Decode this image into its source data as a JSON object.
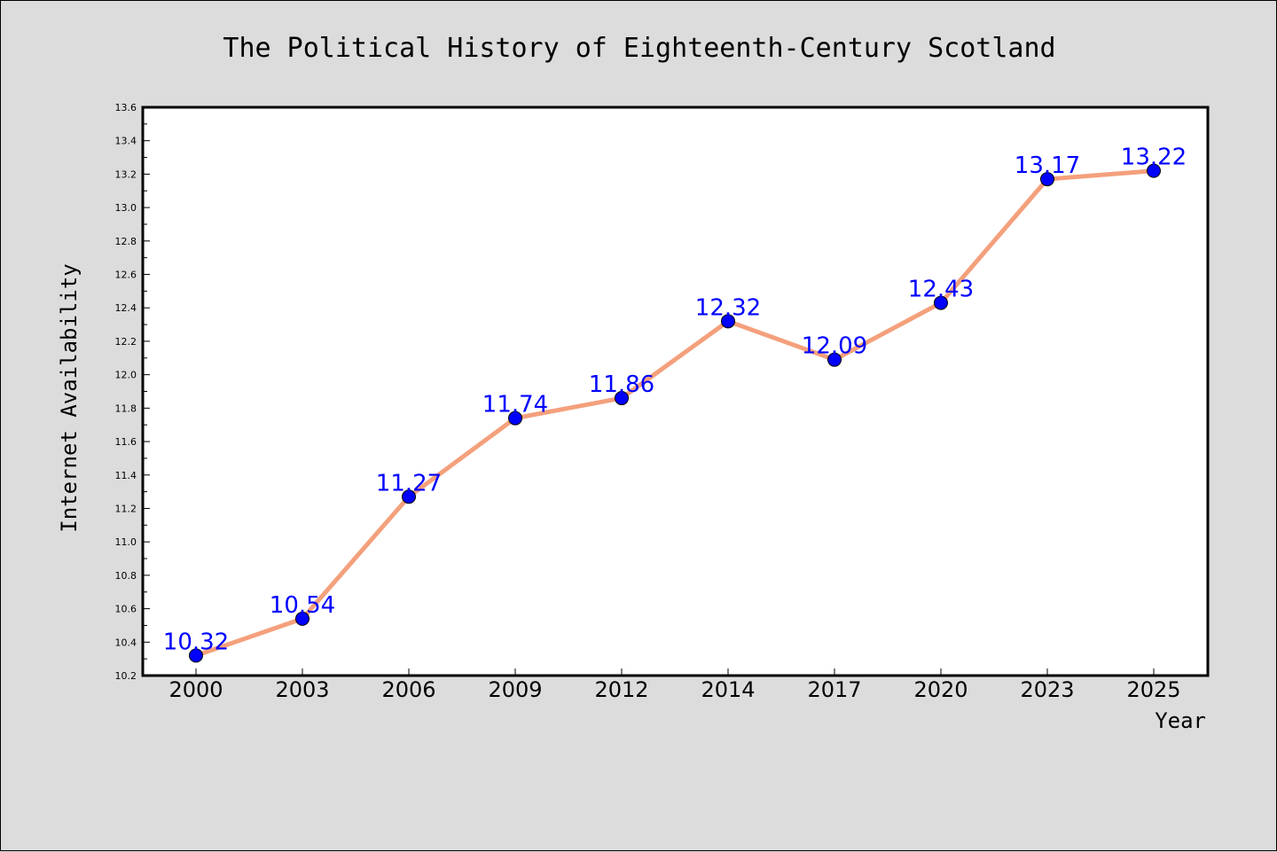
{
  "chart_data": {
    "type": "line",
    "title": "The Political History of Eighteenth-Century Scotland",
    "xlabel": "Year",
    "ylabel": "Internet Availability",
    "categories": [
      "2000",
      "2003",
      "2006",
      "2009",
      "2012",
      "2014",
      "2017",
      "2020",
      "2023",
      "2025"
    ],
    "series": [
      {
        "values": [
          10.32,
          10.54,
          11.27,
          11.74,
          11.86,
          12.32,
          12.09,
          12.43,
          13.17,
          13.22
        ],
        "labels": [
          "10.32",
          "10.54",
          "11.27",
          "11.74",
          "11.86",
          "12.32",
          "12.09",
          "12.43",
          "13.17",
          "13.22"
        ]
      }
    ],
    "ylim": [
      10.2,
      13.6
    ],
    "yticks": [
      "10.2",
      "10.4",
      "10.6",
      "10.8",
      "11.0",
      "11.2",
      "11.4",
      "11.6",
      "11.8",
      "12.0",
      "12.2",
      "12.4",
      "12.6",
      "12.8",
      "13.0",
      "13.2",
      "13.4",
      "13.6"
    ],
    "grid": false,
    "legend": "none",
    "colors": {
      "line": "#f4a07c",
      "marker": "#0000ff",
      "label": "#0000ff",
      "figure_background": "#dcdcdc",
      "plot_background": "#ffffff"
    }
  }
}
